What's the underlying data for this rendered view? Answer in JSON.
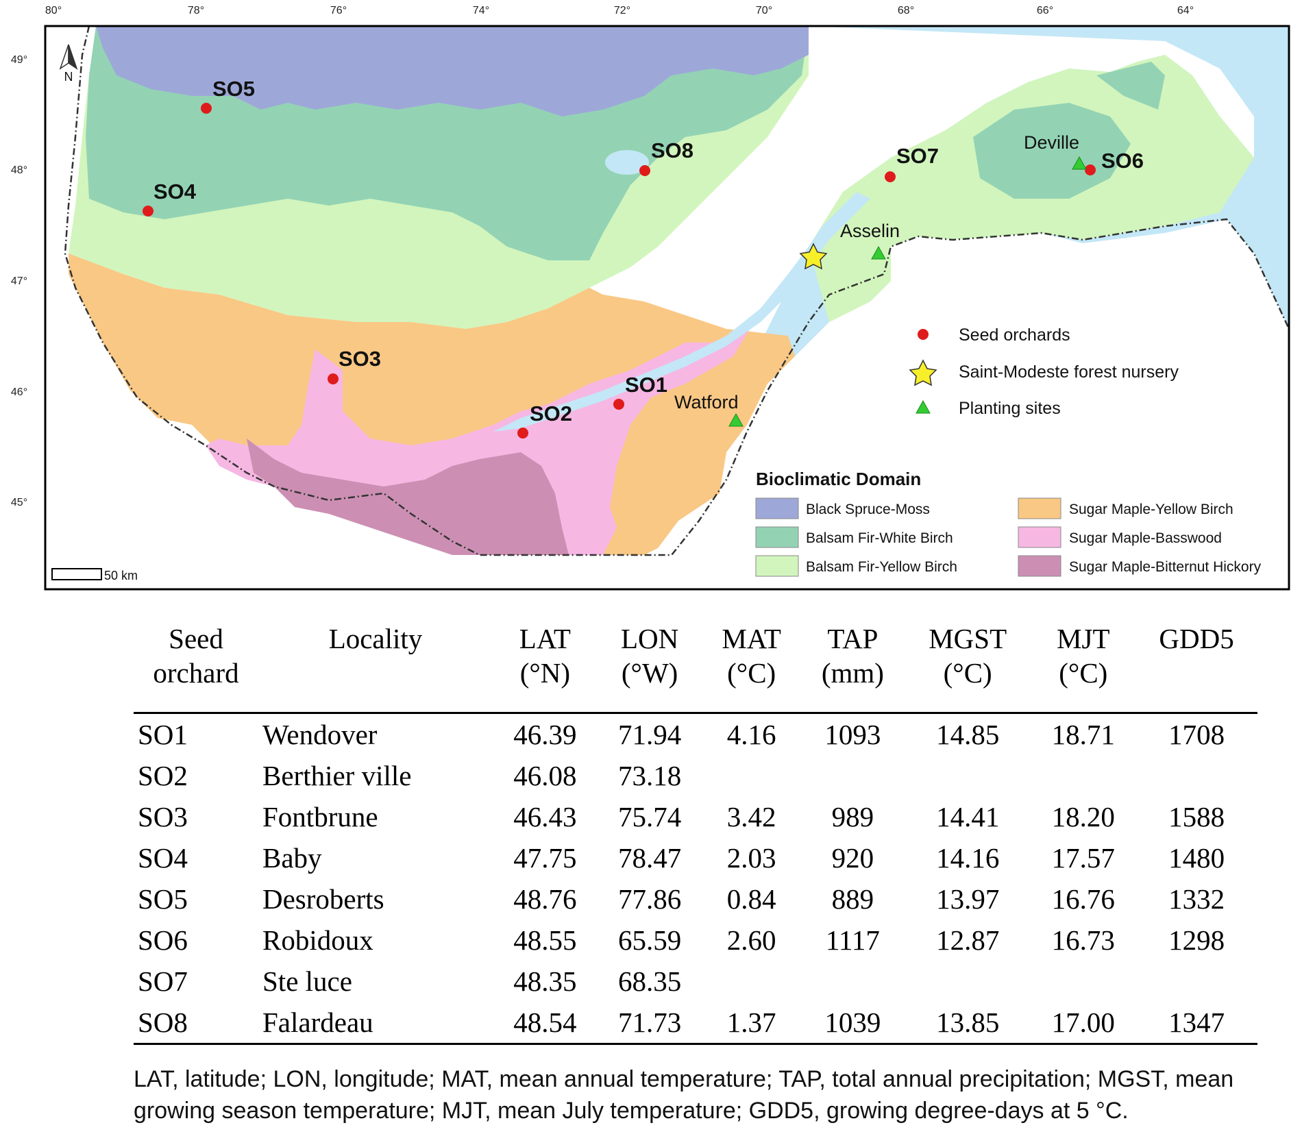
{
  "map": {
    "lon_ticks": [
      "80°",
      "78°",
      "76°",
      "74°",
      "72°",
      "70°",
      "68°",
      "66°",
      "64°"
    ],
    "lat_ticks": [
      "49°",
      "48°",
      "47°",
      "46°",
      "45°"
    ],
    "north_label": "N",
    "scale_label": "50 km",
    "seed_orchards": [
      {
        "label": "SO1"
      },
      {
        "label": "SO2"
      },
      {
        "label": "SO3"
      },
      {
        "label": "SO4"
      },
      {
        "label": "SO5"
      },
      {
        "label": "SO6"
      },
      {
        "label": "SO7"
      },
      {
        "label": "SO8"
      }
    ],
    "planting_sites": [
      "Deville",
      "Asselin",
      "Watford"
    ],
    "legend": {
      "seed_orchards": "Seed orchards",
      "nursery": "Saint-Modeste forest nursery",
      "planting_sites": "Planting sites"
    },
    "domain_legend": {
      "title": "Bioclimatic Domain",
      "items": [
        {
          "label": "Black Spruce-Moss",
          "color": "#9ea8d8"
        },
        {
          "label": "Balsam Fir-White Birch",
          "color": "#93d3b4"
        },
        {
          "label": "Balsam Fir-Yellow Birch",
          "color": "#d2f5bd"
        },
        {
          "label": "Sugar Maple-Yellow Birch",
          "color": "#f9c885"
        },
        {
          "label": "Sugar Maple-Basswood",
          "color": "#f6b7e3"
        },
        {
          "label": "Sugar Maple-Bitternut Hickory",
          "color": "#cc8fb3"
        }
      ]
    },
    "colors": {
      "water": "#c3e7f6",
      "seed_orchard_marker": "#e01b1b",
      "nursery_marker": "#f7ef2a",
      "planting_site_marker": "#33cc33"
    }
  },
  "table": {
    "headers": [
      {
        "l1": "Seed",
        "l2": "orchard"
      },
      {
        "l1": "Locality",
        "l2": ""
      },
      {
        "l1": "LAT",
        "l2": "(°N)"
      },
      {
        "l1": "LON",
        "l2": "(°W)"
      },
      {
        "l1": "MAT",
        "l2": "(°C)"
      },
      {
        "l1": "TAP",
        "l2": "(mm)"
      },
      {
        "l1": "MGST",
        "l2": "(°C)"
      },
      {
        "l1": "MJT",
        "l2": "(°C)"
      },
      {
        "l1": "GDD5",
        "l2": ""
      }
    ],
    "rows": [
      [
        "SO1",
        "Wendover",
        "46.39",
        "71.94",
        "4.16",
        "1093",
        "14.85",
        "18.71",
        "1708"
      ],
      [
        "SO2",
        "Berthier ville",
        "46.08",
        "73.18",
        "",
        "",
        "",
        "",
        ""
      ],
      [
        "SO3",
        "Fontbrune",
        "46.43",
        "75.74",
        "3.42",
        "989",
        "14.41",
        "18.20",
        "1588"
      ],
      [
        "SO4",
        "Baby",
        "47.75",
        "78.47",
        "2.03",
        "920",
        "14.16",
        "17.57",
        "1480"
      ],
      [
        "SO5",
        "Desroberts",
        "48.76",
        "77.86",
        "0.84",
        "889",
        "13.97",
        "16.76",
        "1332"
      ],
      [
        "SO6",
        "Robidoux",
        "48.55",
        "65.59",
        "2.60",
        "1117",
        "12.87",
        "16.73",
        "1298"
      ],
      [
        "SO7",
        "Ste luce",
        "48.35",
        "68.35",
        "",
        "",
        "",
        "",
        ""
      ],
      [
        "SO8",
        "Falardeau",
        "48.54",
        "71.73",
        "1.37",
        "1039",
        "13.85",
        "17.00",
        "1347"
      ]
    ],
    "footnote": "LAT, latitude; LON, longitude; MAT, mean annual temperature; TAP, total annual precipitation; MGST, mean growing season temperature; MJT, mean July temperature; GDD5, growing degree-days at 5 °C."
  }
}
